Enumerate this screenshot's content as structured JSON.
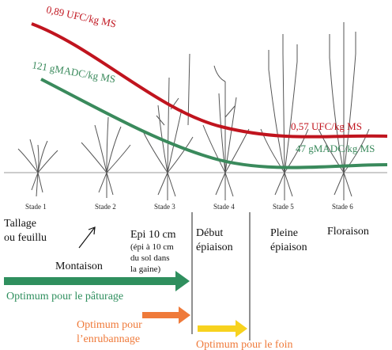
{
  "curves": [
    {
      "start_label": "0,89 UFC/kg MS",
      "end_label": "0,57 UFC/kg MS"
    },
    {
      "start_label": "121 gMADC/kg MS",
      "end_label": "47 gMADC/kg MS"
    }
  ],
  "stages": [
    "Stade 1",
    "Stade 2",
    "Stade 3",
    "Stade 4",
    "Stade 5",
    "Stade 6"
  ],
  "phases": {
    "tallage": [
      "Tallage",
      "ou feuillu"
    ],
    "montaison": "Montaison",
    "epi": {
      "title": "Epi 10 cm",
      "note": [
        "(épi à 10 cm",
        "du sol dans",
        "la gaine)"
      ]
    },
    "debut": [
      "Début",
      "épiaison"
    ],
    "pleine": [
      "Pleine",
      "épiaison"
    ],
    "floraison": "Floraison"
  },
  "optima": {
    "paturage": "Optimum pour le pâturage",
    "enrubannage": [
      "Optimum pour",
      "l’enrubannage"
    ],
    "foin": "Optimum pour le foin"
  }
}
